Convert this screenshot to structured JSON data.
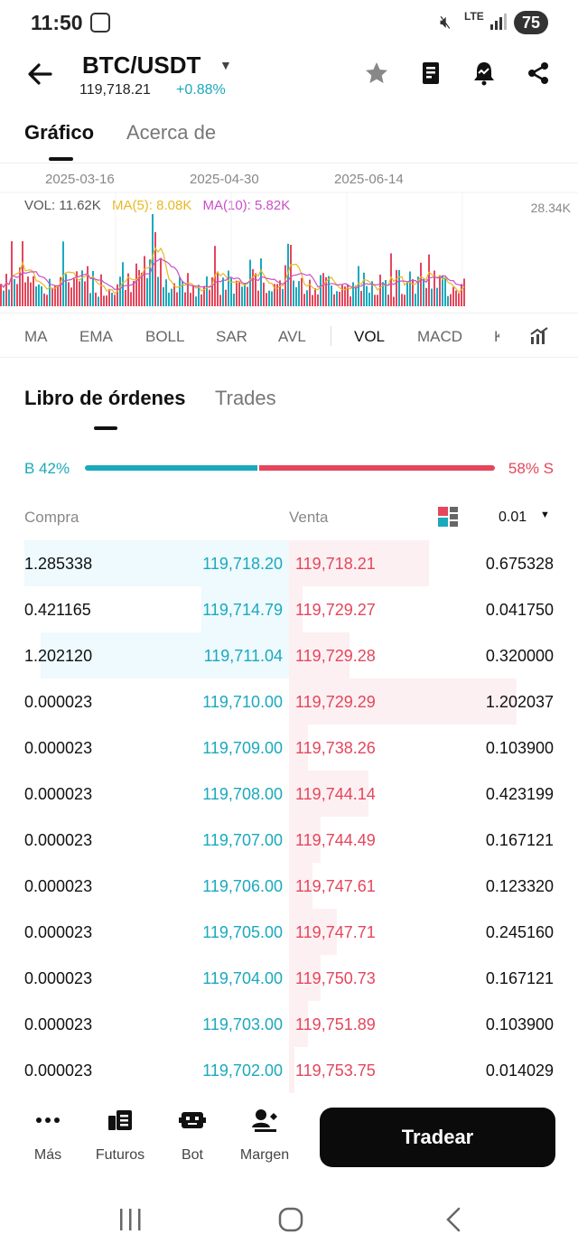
{
  "status": {
    "time": "11:50",
    "network": "LTE",
    "battery": "75"
  },
  "header": {
    "pair": "BTC/USDT",
    "price": "119,718.21",
    "change": "+0.88%"
  },
  "tabs": [
    {
      "label": "Gráfico"
    },
    {
      "label": "Acerca de"
    }
  ],
  "chart": {
    "dates": [
      "2025-03-16",
      "2025-04-30",
      "2025-06-14"
    ],
    "vol": "VOL: 11.62K",
    "ma5": "MA(5): 8.08K",
    "ma10": "MA(10): 5.82K",
    "vmax": "28.34K",
    "colors": {
      "up": "#1aa9bd",
      "down": "#e4465c",
      "ma5": "#e8b923",
      "ma10": "#c94fc8"
    }
  },
  "indicators": [
    "MA",
    "EMA",
    "BOLL",
    "SAR",
    "AVL",
    "VOL",
    "MACD",
    "K"
  ],
  "orderbook": {
    "tabs": [
      "Libro de órdenes",
      "Trades"
    ],
    "buy_label": "B 42%",
    "sell_label": "58% S",
    "buy_ratio": 0.42,
    "col_buy": "Compra",
    "col_sell": "Venta",
    "precision": "0.01",
    "rows": [
      {
        "bq": "1.285338",
        "bp": "119,718.20",
        "sp": "119,718.21",
        "sq": "0.675328",
        "bd": 1.0,
        "sd": 0.53
      },
      {
        "bq": "0.421165",
        "bp": "119,714.79",
        "sp": "119,729.27",
        "sq": "0.041750",
        "bd": 0.33,
        "sd": 0.05
      },
      {
        "bq": "1.202120",
        "bp": "119,711.04",
        "sp": "119,729.28",
        "sq": "0.320000",
        "bd": 0.94,
        "sd": 0.23
      },
      {
        "bq": "0.000023",
        "bp": "119,710.00",
        "sp": "119,729.29",
        "sq": "1.202037",
        "bd": 0.0,
        "sd": 0.86
      },
      {
        "bq": "0.000023",
        "bp": "119,709.00",
        "sp": "119,738.26",
        "sq": "0.103900",
        "bd": 0.0,
        "sd": 0.07
      },
      {
        "bq": "0.000023",
        "bp": "119,708.00",
        "sp": "119,744.14",
        "sq": "0.423199",
        "bd": 0.0,
        "sd": 0.3
      },
      {
        "bq": "0.000023",
        "bp": "119,707.00",
        "sp": "119,744.49",
        "sq": "0.167121",
        "bd": 0.0,
        "sd": 0.12
      },
      {
        "bq": "0.000023",
        "bp": "119,706.00",
        "sp": "119,747.61",
        "sq": "0.123320",
        "bd": 0.0,
        "sd": 0.09
      },
      {
        "bq": "0.000023",
        "bp": "119,705.00",
        "sp": "119,747.71",
        "sq": "0.245160",
        "bd": 0.0,
        "sd": 0.18
      },
      {
        "bq": "0.000023",
        "bp": "119,704.00",
        "sp": "119,750.73",
        "sq": "0.167121",
        "bd": 0.0,
        "sd": 0.12
      },
      {
        "bq": "0.000023",
        "bp": "119,703.00",
        "sp": "119,751.89",
        "sq": "0.103900",
        "bd": 0.0,
        "sd": 0.07
      },
      {
        "bq": "0.000023",
        "bp": "119,702.00",
        "sp": "119,753.75",
        "sq": "0.014029",
        "bd": 0.0,
        "sd": 0.02
      }
    ]
  },
  "actions": {
    "more": "Más",
    "futures": "Futuros",
    "bot": "Bot",
    "margin": "Margen",
    "trade": "Tradear"
  },
  "icons": [
    "back-arrow-icon",
    "star-icon",
    "book-icon",
    "alert-icon",
    "share-icon",
    "dots-icon",
    "futures-icon",
    "bot-icon",
    "margin-icon",
    "chart-settings-icon",
    "recents-icon",
    "home-icon",
    "nav-back-icon"
  ]
}
